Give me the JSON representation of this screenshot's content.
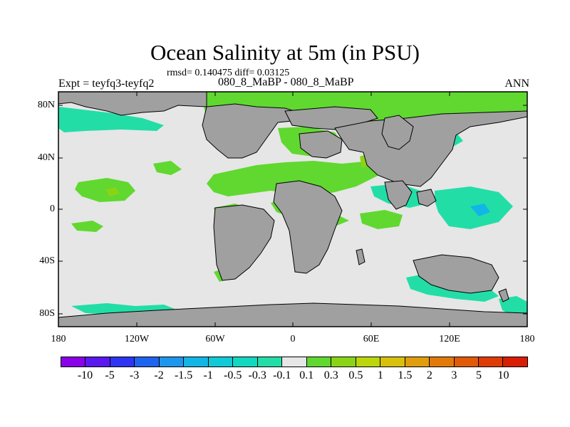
{
  "title": "Ocean Salinity at 5m (in PSU)",
  "stats": "rmsd= 0.140475 diff= 0.03125",
  "left_label": "Expt = teyfq3-teyfq2",
  "center_label": "080_8_MaBP - 080_8_MaBP",
  "right_label": "ANN",
  "lat_ticks": [
    "80N",
    "40N",
    "0",
    "40S",
    "80S"
  ],
  "lon_ticks": [
    "180",
    "120W",
    "60W",
    "0",
    "60E",
    "120E",
    "180"
  ],
  "colorbar": {
    "labels": [
      "-10",
      "-5",
      "-3",
      "-2",
      "-1.5",
      "-1",
      "-0.5",
      "-0.3",
      "-0.1",
      "0.1",
      "0.3",
      "0.5",
      "1",
      "1.5",
      "2",
      "3",
      "5",
      "10"
    ],
    "colors": [
      "#8a00e8",
      "#5a18ef",
      "#2f34f2",
      "#1f64ee",
      "#1e96ee",
      "#12b6e6",
      "#10cad8",
      "#12d8c0",
      "#22dea6",
      "#e6e6e6",
      "#60d830",
      "#8ad418",
      "#bcd60c",
      "#d8c00c",
      "#e09e0c",
      "#e27a0a",
      "#e05a08",
      "#de3c06",
      "#d81e04"
    ]
  },
  "colors": {
    "land": "#a0a0a0",
    "neutral_ocean": "#e6e6e6",
    "positive_small": "#60d830",
    "positive_medium": "#8ad418",
    "negative_small": "#22dea6",
    "negative_medium": "#12b6e6"
  }
}
